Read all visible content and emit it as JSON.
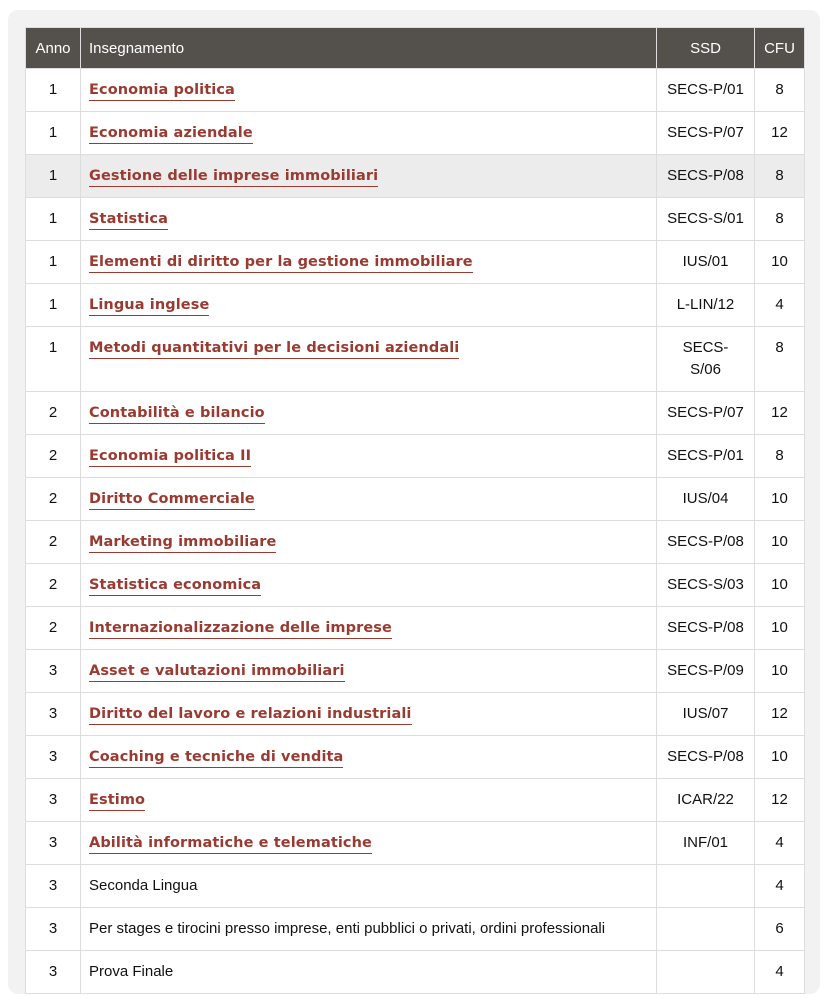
{
  "table": {
    "headers": {
      "anno": "Anno",
      "insegnamento": "Insegnamento",
      "ssd": "SSD",
      "cfu": "CFU"
    },
    "rows": [
      {
        "anno": "1",
        "name": "Economia politica",
        "link": true,
        "ssd": "SECS-P/01",
        "cfu": "8"
      },
      {
        "anno": "1",
        "name": "Economia aziendale",
        "link": true,
        "ssd": "SECS-P/07",
        "cfu": "12"
      },
      {
        "anno": "1",
        "name": "Gestione delle imprese immobiliari",
        "link": true,
        "ssd": "SECS-P/08",
        "cfu": "8",
        "highlighted": true
      },
      {
        "anno": "1",
        "name": "Statistica",
        "link": true,
        "ssd": "SECS-S/01",
        "cfu": "8"
      },
      {
        "anno": "1",
        "name": "Elementi di diritto per la gestione immobiliare",
        "link": true,
        "ssd": "IUS/01",
        "cfu": "10"
      },
      {
        "anno": "1",
        "name": "Lingua inglese",
        "link": true,
        "ssd": "L-LIN/12",
        "cfu": "4"
      },
      {
        "anno": "1",
        "name": "Metodi quantitativi per le decisioni aziendali",
        "link": true,
        "ssd": "SECS-S/06",
        "cfu": "8"
      },
      {
        "anno": "2",
        "name": "Contabilità e bilancio",
        "link": true,
        "ssd": "SECS-P/07",
        "cfu": "12"
      },
      {
        "anno": "2",
        "name": "Economia politica II",
        "link": true,
        "ssd": "SECS-P/01",
        "cfu": "8"
      },
      {
        "anno": "2",
        "name": "Diritto Commerciale",
        "link": true,
        "ssd": "IUS/04",
        "cfu": "10"
      },
      {
        "anno": "2",
        "name": "Marketing immobiliare",
        "link": true,
        "ssd": "SECS-P/08",
        "cfu": "10"
      },
      {
        "anno": "2",
        "name": "Statistica economica",
        "link": true,
        "ssd": "SECS-S/03",
        "cfu": "10"
      },
      {
        "anno": "2",
        "name": "Internazionalizzazione delle imprese",
        "link": true,
        "ssd": "SECS-P/08",
        "cfu": "10"
      },
      {
        "anno": "3",
        "name": "Asset e valutazioni immobiliari",
        "link": true,
        "ssd": "SECS-P/09",
        "cfu": "10"
      },
      {
        "anno": "3",
        "name": "Diritto del lavoro e relazioni industriali",
        "link": true,
        "ssd": "IUS/07",
        "cfu": "12"
      },
      {
        "anno": "3",
        "name": "Coaching e tecniche di vendita",
        "link": true,
        "ssd": "SECS-P/08",
        "cfu": "10"
      },
      {
        "anno": "3",
        "name": "Estimo",
        "link": true,
        "ssd": "ICAR/22",
        "cfu": "12"
      },
      {
        "anno": "3",
        "name": "Abilità informatiche e telematiche",
        "link": true,
        "ssd": "INF/01",
        "cfu": "4"
      },
      {
        "anno": "3",
        "name": "Seconda Lingua",
        "link": false,
        "ssd": "",
        "cfu": "4"
      },
      {
        "anno": "3",
        "name": "Per stages e tirocini presso imprese, enti pubblici o privati, ordini professionali",
        "link": false,
        "ssd": "",
        "cfu": "6"
      },
      {
        "anno": "3",
        "name": "Prova Finale",
        "link": false,
        "ssd": "",
        "cfu": "4"
      }
    ]
  }
}
